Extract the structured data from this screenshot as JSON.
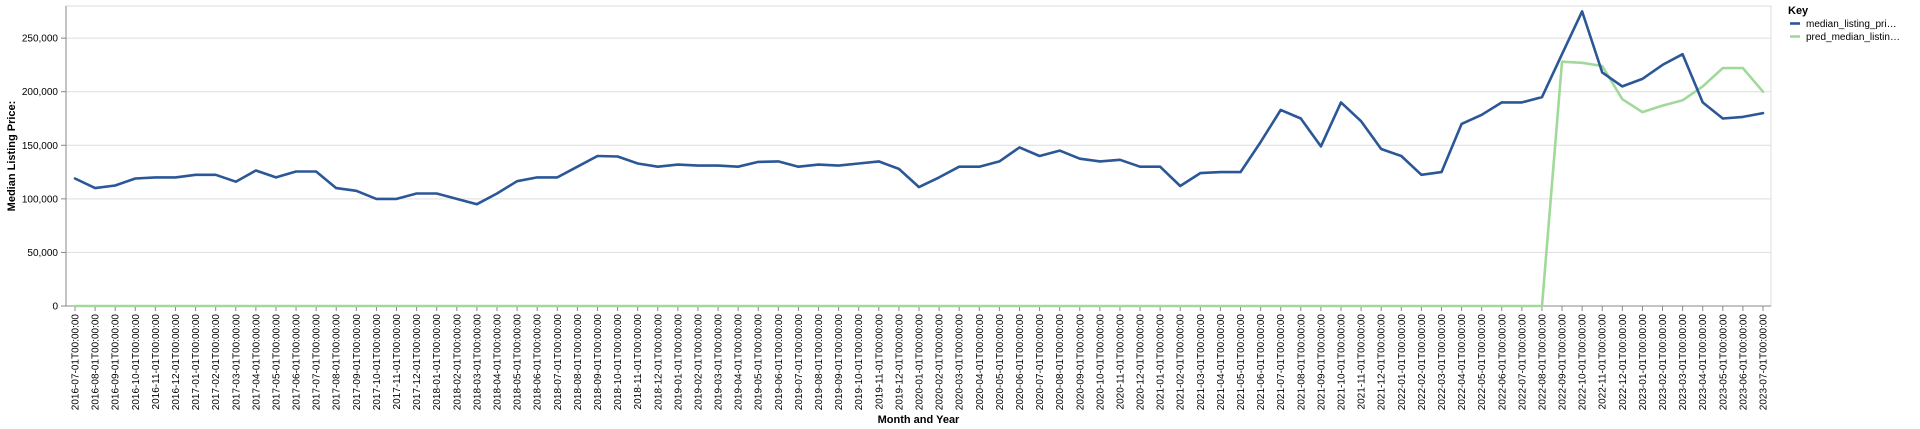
{
  "chart_data": {
    "type": "line",
    "xlabel": "Month and Year",
    "ylabel": "Median Listing Price:",
    "ylim": [
      0,
      280000
    ],
    "yticks": [
      0,
      50000,
      100000,
      150000,
      200000,
      250000
    ],
    "ytick_labels": [
      "0",
      "50,000",
      "100,000",
      "150,000",
      "200,000",
      "250,000"
    ],
    "grid": true,
    "legend": {
      "title": "Key",
      "placement": "top-right",
      "entries": [
        "median_listing_pri…",
        "pred_median_listin…"
      ]
    },
    "x": [
      "2016-07-01T00:00:00",
      "2016-08-01T00:00:00",
      "2016-09-01T00:00:00",
      "2016-10-01T00:00:00",
      "2016-11-01T00:00:00",
      "2016-12-01T00:00:00",
      "2017-01-01T00:00:00",
      "2017-02-01T00:00:00",
      "2017-03-01T00:00:00",
      "2017-04-01T00:00:00",
      "2017-05-01T00:00:00",
      "2017-06-01T00:00:00",
      "2017-07-01T00:00:00",
      "2017-08-01T00:00:00",
      "2017-09-01T00:00:00",
      "2017-10-01T00:00:00",
      "2017-11-01T00:00:00",
      "2017-12-01T00:00:00",
      "2018-01-01T00:00:00",
      "2018-02-01T00:00:00",
      "2018-03-01T00:00:00",
      "2018-04-01T00:00:00",
      "2018-05-01T00:00:00",
      "2018-06-01T00:00:00",
      "2018-07-01T00:00:00",
      "2018-08-01T00:00:00",
      "2018-09-01T00:00:00",
      "2018-10-01T00:00:00",
      "2018-11-01T00:00:00",
      "2018-12-01T00:00:00",
      "2019-01-01T00:00:00",
      "2019-02-01T00:00:00",
      "2019-03-01T00:00:00",
      "2019-04-01T00:00:00",
      "2019-05-01T00:00:00",
      "2019-06-01T00:00:00",
      "2019-07-01T00:00:00",
      "2019-08-01T00:00:00",
      "2019-09-01T00:00:00",
      "2019-10-01T00:00:00",
      "2019-11-01T00:00:00",
      "2019-12-01T00:00:00",
      "2020-01-01T00:00:00",
      "2020-02-01T00:00:00",
      "2020-03-01T00:00:00",
      "2020-04-01T00:00:00",
      "2020-05-01T00:00:00",
      "2020-06-01T00:00:00",
      "2020-07-01T00:00:00",
      "2020-08-01T00:00:00",
      "2020-09-01T00:00:00",
      "2020-10-01T00:00:00",
      "2020-11-01T00:00:00",
      "2020-12-01T00:00:00",
      "2021-01-01T00:00:00",
      "2021-02-01T00:00:00",
      "2021-03-01T00:00:00",
      "2021-04-01T00:00:00",
      "2021-05-01T00:00:00",
      "2021-06-01T00:00:00",
      "2021-07-01T00:00:00",
      "2021-08-01T00:00:00",
      "2021-09-01T00:00:00",
      "2021-10-01T00:00:00",
      "2021-11-01T00:00:00",
      "2021-12-01T00:00:00",
      "2022-01-01T00:00:00",
      "2022-02-01T00:00:00",
      "2022-03-01T00:00:00",
      "2022-04-01T00:00:00",
      "2022-05-01T00:00:00",
      "2022-06-01T00:00:00",
      "2022-07-01T00:00:00",
      "2022-08-01T00:00:00",
      "2022-09-01T00:00:00",
      "2022-10-01T00:00:00",
      "2022-11-01T00:00:00",
      "2022-12-01T00:00:00",
      "2023-01-01T00:00:00",
      "2023-02-01T00:00:00",
      "2023-03-01T00:00:00",
      "2023-04-01T00:00:00",
      "2023-05-01T00:00:00",
      "2023-06-01T00:00:00",
      "2023-07-01T00:00:00"
    ],
    "series": [
      {
        "name": "median_listing_pri…",
        "color": "#2b5797",
        "values": [
          119000,
          110000,
          112500,
          119000,
          120000,
          120000,
          122500,
          122500,
          116000,
          126500,
          120000,
          125500,
          125500,
          110000,
          107500,
          100000,
          100000,
          105000,
          105000,
          100000,
          95000,
          105000,
          116500,
          120000,
          120000,
          130000,
          140000,
          139500,
          133000,
          130000,
          132000,
          131000,
          131000,
          130000,
          134500,
          135000,
          130000,
          132000,
          131000,
          133000,
          135000,
          128000,
          111000,
          120000,
          130000,
          130000,
          135000,
          148000,
          140000,
          145000,
          137500,
          135000,
          136500,
          130000,
          130000,
          112000,
          124000,
          125000,
          125000,
          153000,
          183000,
          175000,
          149000,
          190000,
          172500,
          146500,
          140000,
          122500,
          125000,
          170000,
          178500,
          190000,
          190000,
          195000,
          235000,
          275000,
          218000,
          205000,
          212000,
          225000,
          235000,
          190000,
          175000,
          176500,
          180000
        ]
      },
      {
        "name": "pred_median_listin…",
        "color": "#a1d99b",
        "values": [
          0,
          0,
          0,
          0,
          0,
          0,
          0,
          0,
          0,
          0,
          0,
          0,
          0,
          0,
          0,
          0,
          0,
          0,
          0,
          0,
          0,
          0,
          0,
          0,
          0,
          0,
          0,
          0,
          0,
          0,
          0,
          0,
          0,
          0,
          0,
          0,
          0,
          0,
          0,
          0,
          0,
          0,
          0,
          0,
          0,
          0,
          0,
          0,
          0,
          0,
          0,
          0,
          0,
          0,
          0,
          0,
          0,
          0,
          0,
          0,
          0,
          0,
          0,
          0,
          0,
          0,
          0,
          0,
          0,
          0,
          0,
          0,
          0,
          0,
          228000,
          227000,
          224000,
          193000,
          181000,
          187000,
          192000,
          205000,
          222000,
          222000,
          200000
        ]
      }
    ]
  }
}
